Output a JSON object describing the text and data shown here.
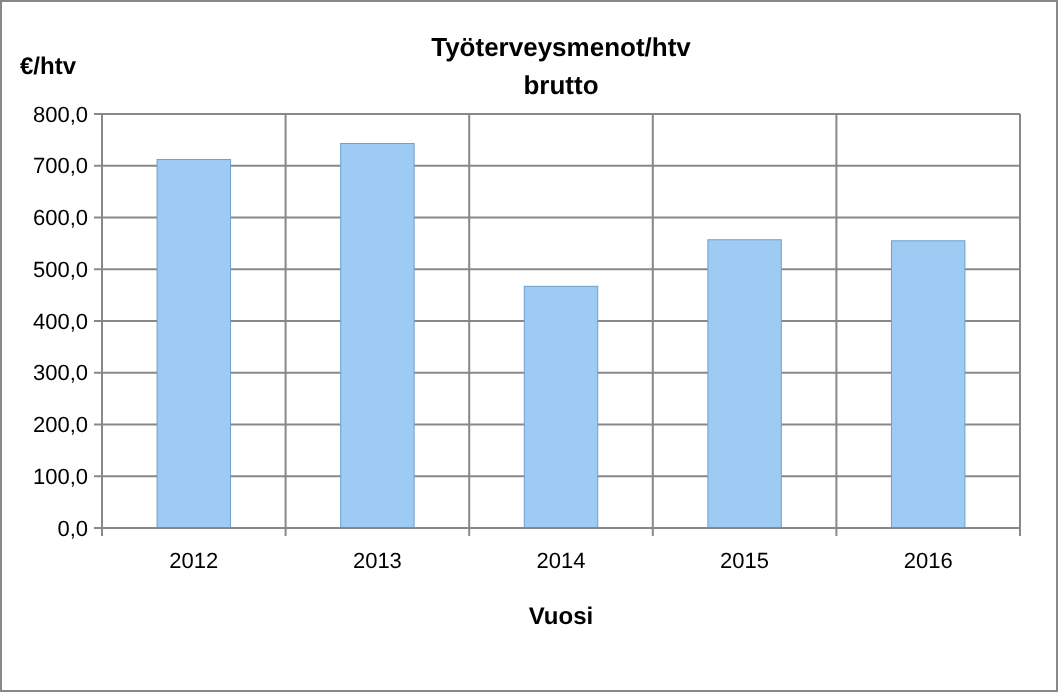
{
  "chart_data": {
    "type": "bar",
    "title": "Työterveysmenot/htv\nbrutto",
    "ylabel": "€/htv",
    "xlabel": "Vuosi",
    "categories": [
      "2012",
      "2013",
      "2014",
      "2015",
      "2016"
    ],
    "values": [
      712,
      743,
      467,
      557,
      555
    ],
    "color": "#9ecbf3",
    "ylim": [
      0,
      800
    ],
    "yticks": [
      {
        "value": 0,
        "label": "0,0"
      },
      {
        "value": 100,
        "label": "100,0"
      },
      {
        "value": 200,
        "label": "200,0"
      },
      {
        "value": 300,
        "label": "300,0"
      },
      {
        "value": 400,
        "label": "400,0"
      },
      {
        "value": 500,
        "label": "500,0"
      },
      {
        "value": 600,
        "label": "600,0"
      },
      {
        "value": 700,
        "label": "700,0"
      },
      {
        "value": 800,
        "label": "800,0"
      }
    ],
    "grid": true
  }
}
